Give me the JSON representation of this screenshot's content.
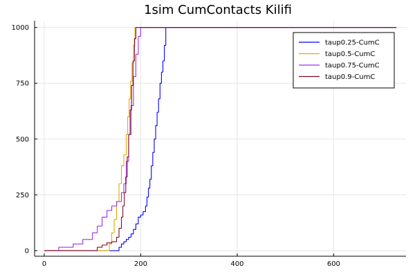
{
  "chart_data": {
    "type": "line",
    "title": "1sim CumContacts Kilifi",
    "xlabel": "",
    "ylabel": "",
    "xlim": [
      -20,
      750
    ],
    "ylim": [
      -25,
      1030
    ],
    "x_ticks": [
      0,
      200,
      400,
      600
    ],
    "y_ticks": [
      0,
      250,
      500,
      750,
      1000
    ],
    "grid": true,
    "legend_position": "top-right",
    "series": [
      {
        "name": "taup0.25-CumC",
        "color": "#0000ff",
        "x": [
          0,
          150,
          155,
          160,
          165,
          170,
          175,
          180,
          185,
          190,
          195,
          200,
          205,
          210,
          213,
          216,
          219,
          222,
          225,
          228,
          231,
          234,
          237,
          240,
          243,
          246,
          249,
          252,
          730
        ],
        "y": [
          0,
          0,
          15,
          30,
          40,
          50,
          60,
          75,
          95,
          120,
          150,
          160,
          175,
          200,
          240,
          280,
          320,
          380,
          440,
          500,
          560,
          620,
          680,
          750,
          800,
          850,
          920,
          1000,
          1000
        ]
      },
      {
        "name": "taup0.5-CumC",
        "color": "#e6a800",
        "x": [
          0,
          130,
          135,
          140,
          145,
          150,
          155,
          160,
          165,
          170,
          173,
          176,
          179,
          182,
          185,
          188,
          730
        ],
        "y": [
          0,
          0,
          30,
          80,
          140,
          220,
          300,
          380,
          430,
          520,
          600,
          680,
          760,
          840,
          920,
          1000,
          1000
        ]
      },
      {
        "name": "taup0.75-CumC",
        "color": "#9b30e0",
        "x": [
          0,
          30,
          60,
          80,
          100,
          110,
          120,
          130,
          140,
          150,
          160,
          165,
          170,
          175,
          180,
          185,
          190,
          195,
          200,
          730
        ],
        "y": [
          0,
          15,
          30,
          50,
          80,
          110,
          150,
          180,
          200,
          220,
          260,
          300,
          400,
          520,
          650,
          780,
          880,
          960,
          1000,
          1000
        ]
      },
      {
        "name": "taup0.9-CumC",
        "color": "#7a0a2a",
        "x": [
          0,
          100,
          110,
          120,
          130,
          140,
          150,
          155,
          160,
          163,
          166,
          169,
          172,
          175,
          178,
          181,
          184,
          187,
          190,
          730
        ],
        "y": [
          0,
          0,
          15,
          25,
          35,
          40,
          60,
          100,
          150,
          200,
          260,
          330,
          420,
          520,
          630,
          740,
          850,
          950,
          1000,
          1000
        ]
      }
    ]
  }
}
